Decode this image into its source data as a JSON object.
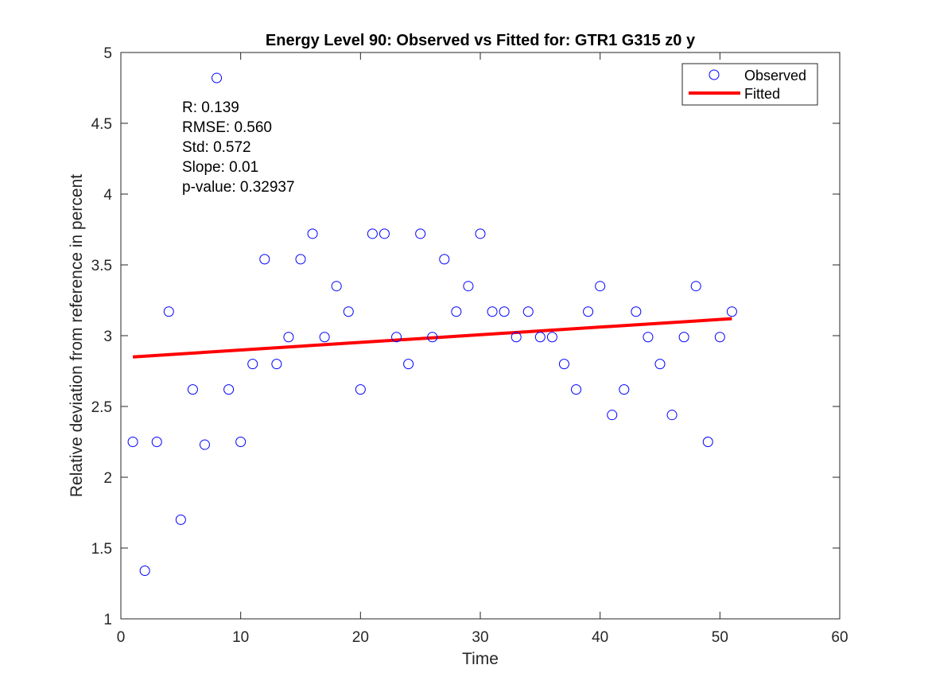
{
  "chart_data": {
    "type": "scatter",
    "title": "Energy Level 90: Observed vs Fitted for: GTR1 G315 z0 y",
    "xlabel": "Time",
    "ylabel": "Relative deviation from reference in percent",
    "xlim": [
      0,
      60
    ],
    "ylim": [
      1,
      5
    ],
    "xticks": [
      0,
      10,
      20,
      30,
      40,
      50,
      60
    ],
    "yticks": [
      1,
      1.5,
      2,
      2.5,
      3,
      3.5,
      4,
      4.5,
      5
    ],
    "xtick_labels": [
      "0",
      "10",
      "20",
      "30",
      "40",
      "50",
      "60"
    ],
    "ytick_labels": [
      "1",
      "1.5",
      "2",
      "2.5",
      "3",
      "3.5",
      "4",
      "4.5",
      "5"
    ],
    "grid": false,
    "legend_position": "top-right",
    "annotations": [
      "R: 0.139",
      "RMSE: 0.560",
      "Std: 0.572",
      "Slope: 0.01",
      "p-value: 0.32937"
    ],
    "series": [
      {
        "name": "Observed",
        "kind": "scatter",
        "marker": "open-circle",
        "color": "#0000ff",
        "x": [
          1,
          2,
          3,
          4,
          5,
          6,
          7,
          8,
          9,
          10,
          11,
          12,
          13,
          14,
          15,
          16,
          17,
          18,
          19,
          20,
          21,
          22,
          23,
          24,
          25,
          26,
          27,
          28,
          29,
          30,
          31,
          32,
          33,
          34,
          35,
          36,
          37,
          38,
          39,
          40,
          41,
          42,
          43,
          44,
          45,
          46,
          47,
          48,
          49,
          50,
          51
        ],
        "y": [
          2.25,
          1.34,
          2.25,
          3.17,
          1.7,
          2.62,
          2.23,
          4.82,
          2.62,
          2.25,
          2.8,
          3.54,
          2.8,
          2.99,
          3.54,
          3.72,
          2.99,
          3.35,
          3.17,
          2.62,
          3.72,
          3.72,
          2.99,
          2.8,
          3.72,
          2.99,
          3.54,
          3.17,
          3.35,
          3.72,
          3.17,
          3.17,
          2.99,
          3.17,
          2.99,
          2.99,
          2.8,
          2.62,
          3.17,
          3.35,
          2.44,
          2.62,
          3.17,
          2.99,
          2.8,
          2.44,
          2.99,
          3.35,
          2.25,
          2.99,
          3.17
        ]
      },
      {
        "name": "Fitted",
        "kind": "line",
        "color": "#ff0000",
        "x": [
          1,
          51
        ],
        "y": [
          2.85,
          3.12
        ]
      }
    ]
  }
}
